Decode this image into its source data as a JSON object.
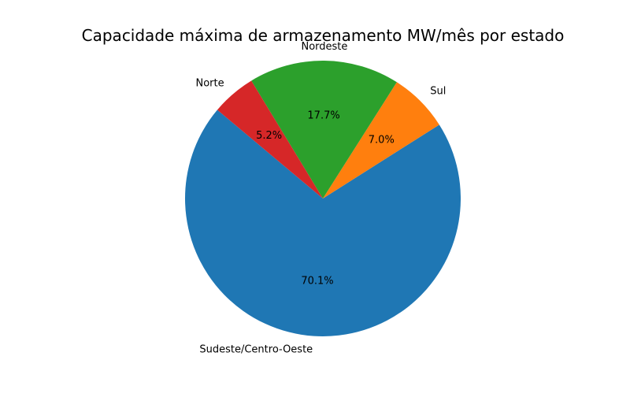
{
  "chart_data": {
    "type": "pie",
    "title": "Capacidade máxima de armazenamento MW/mês por estado",
    "start_angle_deg": 140,
    "direction": "counterclockwise",
    "slices": [
      {
        "label": "Sudeste/Centro-Oeste",
        "value": 70.1,
        "pct_label": "70.1%",
        "color": "#1f77b4"
      },
      {
        "label": "Sul",
        "value": 7.0,
        "pct_label": "7.0%",
        "color": "#ff7f0e"
      },
      {
        "label": "Nordeste",
        "value": 17.7,
        "pct_label": "17.7%",
        "color": "#2ca02c"
      },
      {
        "label": "Norte",
        "value": 5.2,
        "pct_label": "5.2%",
        "color": "#d62728"
      }
    ]
  }
}
